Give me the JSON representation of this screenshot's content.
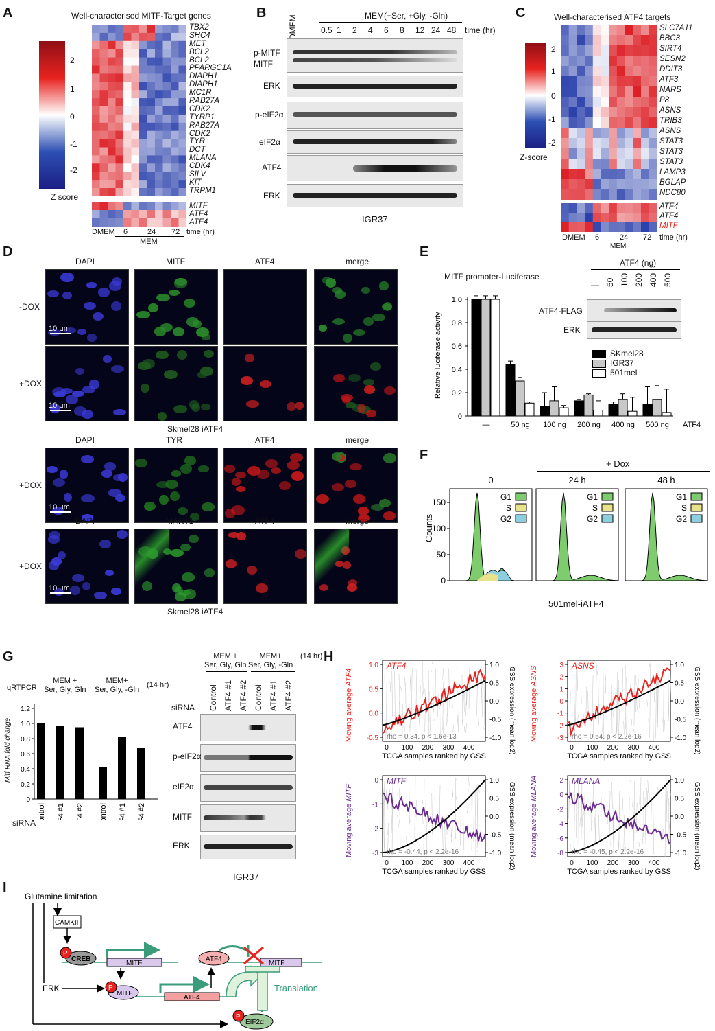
{
  "panels": {
    "A": {
      "letter": "A",
      "title": "Well-characterised MITF-Target genes",
      "genes": [
        "TBX2",
        "SHC4",
        "MET",
        "BCL2",
        "BCL2",
        "PPARGC1A",
        "DIAPH1",
        "DIAPH1",
        "MC1R",
        "RAB27A",
        "CDK2",
        "TYRP1",
        "RAB27A",
        "CDK2",
        "TYR",
        "DCT",
        "MLANA",
        "CDK4",
        "SILV",
        "KIT",
        "TRPM1"
      ],
      "genes2": [
        "MITF",
        "ATF4",
        "ATF4"
      ],
      "scale_ticks": [
        "2",
        "1",
        "0",
        "-1",
        "-2"
      ],
      "scale_label": "Z score",
      "x_labels": [
        "DMEM",
        "6",
        "24",
        "72"
      ],
      "time_label": "time (hr)",
      "group_label": "MEM"
    },
    "B": {
      "letter": "B",
      "dmem": "DMEM",
      "header": "MEM(+Ser, +Gly, -Gln)",
      "times": [
        "0.5",
        "1",
        "2",
        "4",
        "6",
        "8",
        "12",
        "24",
        "48"
      ],
      "time_label": "time (hr)",
      "rows": [
        "p-MITF",
        "MITF",
        "ERK",
        "p-eIF2α",
        "eIF2α",
        "ATF4",
        "ERK"
      ],
      "caption": "IGR37"
    },
    "C": {
      "letter": "C",
      "title": "Well-characterised ATF4 targets",
      "genes": [
        "SLC7A11",
        "BBC3",
        "SIRT4",
        "SESN2",
        "DDIT3",
        "ATF3",
        "NARS",
        "P8",
        "ASNS",
        "TRIB3",
        "ASNS",
        "STAT3",
        "STAT3",
        "STAT3",
        "LAMP3",
        "BGLAP",
        "NDC80"
      ],
      "genes2": [
        "ATF4",
        "ATF4",
        "MITF"
      ],
      "scale_ticks": [
        "2",
        "1",
        "0",
        "-1",
        "-2"
      ],
      "scale_label": "Z-score",
      "x_labels": [
        "DMEM",
        "6",
        "24",
        "72"
      ],
      "time_label": "time (hr)",
      "group_label": "MEM",
      "highlight_color": "#e8231f"
    },
    "D": {
      "letter": "D",
      "cols1": [
        "DAPI",
        "MITF",
        "ATF4",
        "merge"
      ],
      "rows1": [
        "-DOX",
        "+DOX"
      ],
      "caption1": "Skmel28 iATF4",
      "cols2": [
        "DAPI",
        "TYR",
        "ATF4",
        "merge"
      ],
      "cols3": [
        "DAPI",
        "MART1",
        "ATF4",
        "merge"
      ],
      "rows2": [
        "+DOX",
        "+DOX"
      ],
      "caption2": "Skmel28 iATF4",
      "scalebar": "10 μm"
    },
    "E": {
      "letter": "E",
      "title": "MITF promoter-Luciferase",
      "ylabel": "Relative luciferase activity",
      "yticks": [
        "0",
        "0.2",
        "0.4",
        "0.6",
        "0.8",
        "1.0"
      ],
      "blot_header": "ATF4 (ng)",
      "blot_doses": [
        "—",
        "50",
        "100",
        "200",
        "400",
        "500"
      ],
      "blot_rows": [
        "ATF4-FLAG",
        "ERK"
      ],
      "x_suffix": "ATF4",
      "legend": [
        "SKmel28",
        "IGR37",
        "501mel"
      ]
    },
    "F": {
      "letter": "F",
      "header": "+ Dox",
      "panels": [
        "0",
        "24 h",
        "48 h"
      ],
      "ylabel": "Counts",
      "yticks": [
        "0",
        "50",
        "100",
        "150"
      ],
      "legend": [
        "G1",
        "S",
        "G2"
      ],
      "caption": "501mel-iATF4"
    },
    "G": {
      "letter": "G",
      "qrt_label": "qRTPCR",
      "ylabel": "Mitf RNA fold change",
      "yticks": [
        "0",
        "0.2",
        "0.4",
        "0.6",
        "0.8",
        "1.0",
        "1.2"
      ],
      "cond1": [
        "MEM +",
        "Ser, Gly, Gln"
      ],
      "cond2": [
        "MEM+",
        "Ser, Gly, -Gln"
      ],
      "hours": "(14 hr)",
      "sirna_label": "siRNA",
      "lanes": [
        "Control",
        "ATF4 #1",
        "ATF4 #2",
        "Control",
        "ATF4 #1",
        "ATF4 #2"
      ],
      "bar_values": [
        1.0,
        0.97,
        0.95,
        0.42,
        0.82,
        0.68
      ],
      "blot_rows": [
        "ATF4",
        "p-eIF2α",
        "eIF2α",
        "MITF",
        "ERK"
      ],
      "caption": "IGR37"
    },
    "H": {
      "letter": "H",
      "xlabel": "TCGA samples ranked by GSS",
      "right_label": "GSS expression (mean log2)",
      "xticks": [
        "0",
        "100",
        "200",
        "300",
        "400"
      ],
      "plots": [
        {
          "gene": "ATF4",
          "ylabel": "Moving average",
          "stat": "rho = 0.34, p < 1.6e-13",
          "color": "#e8231f",
          "yticks": [
            "-0.5",
            "0.0",
            "0.5",
            "1.0"
          ]
        },
        {
          "gene": "ASNS",
          "ylabel": "Moving average",
          "stat": "rho = 0.54, p < 2.2e-16",
          "color": "#e8231f",
          "yticks": [
            "-3",
            "-2",
            "-1",
            "0",
            "1",
            "2",
            "3"
          ]
        },
        {
          "gene": "MITF",
          "ylabel": "Moving average",
          "stat": "rho = -0.44, p < 2.2e-16",
          "color": "#6a2a8f",
          "yticks": [
            "-3",
            "-2",
            "-1",
            "0"
          ]
        },
        {
          "gene": "MLANA",
          "ylabel": "Moving average",
          "stat": "rho = -0.45, p < 2.2e-16",
          "color": "#6a2a8f",
          "yticks": [
            "-8",
            "-6",
            "-4",
            "-2",
            "0",
            "2"
          ]
        }
      ],
      "right_ticks": [
        "-1.0",
        "-0.5",
        "0.0",
        "0.5",
        "1.0"
      ]
    },
    "I": {
      "letter": "I",
      "start": "Glutamine limitation",
      "nodes": [
        "CAMKII",
        "CREB",
        "MITF",
        "ERK",
        "MITF",
        "ATF4",
        "ATF4",
        "MITF",
        "EIF2α",
        "Translation"
      ],
      "p_label": "P"
    }
  }
}
